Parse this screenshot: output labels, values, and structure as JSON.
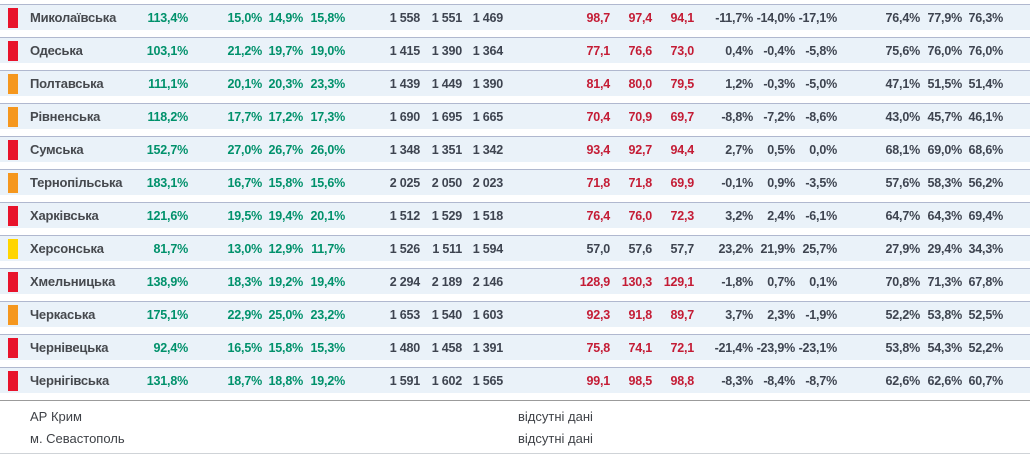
{
  "colors": {
    "indicator": {
      "red": "#e8132b",
      "orange": "#f5971e",
      "yellow": "#ffd500"
    },
    "row_bg": "#eaf2f9",
    "row_border": "#b0b8cf",
    "text_green": "#00916b",
    "text_red": "#c41c35",
    "text_dark": "#3e4450"
  },
  "chart_data": {
    "type": "table",
    "rows": [
      {
        "region": "Миколаївська",
        "level": "red",
        "ratio": "113,4%",
        "pcts": [
          "15,0%",
          "14,9%",
          "15,8%"
        ],
        "counts": [
          "1 558",
          "1 551",
          "1 469"
        ],
        "vals": [
          "98,7",
          "97,4",
          "94,1"
        ],
        "vals_color": "red",
        "deltas": [
          "-11,7%",
          "-14,0%",
          "-17,1%"
        ],
        "shares": [
          "76,4%",
          "77,9%",
          "76,3%"
        ]
      },
      {
        "region": "Одеська",
        "level": "red",
        "ratio": "103,1%",
        "pcts": [
          "21,2%",
          "19,7%",
          "19,0%"
        ],
        "counts": [
          "1 415",
          "1 390",
          "1 364"
        ],
        "vals": [
          "77,1",
          "76,6",
          "73,0"
        ],
        "vals_color": "red",
        "deltas": [
          "0,4%",
          "-0,4%",
          "-5,8%"
        ],
        "shares": [
          "75,6%",
          "76,0%",
          "76,0%"
        ]
      },
      {
        "region": "Полтавська",
        "level": "orange",
        "ratio": "111,1%",
        "pcts": [
          "20,1%",
          "20,3%",
          "23,3%"
        ],
        "counts": [
          "1 439",
          "1 449",
          "1 390"
        ],
        "vals": [
          "81,4",
          "80,0",
          "79,5"
        ],
        "vals_color": "red",
        "deltas": [
          "1,2%",
          "-0,3%",
          "-5,0%"
        ],
        "shares": [
          "47,1%",
          "51,5%",
          "51,4%"
        ]
      },
      {
        "region": "Рівненська",
        "level": "orange",
        "ratio": "118,2%",
        "pcts": [
          "17,7%",
          "17,2%",
          "17,3%"
        ],
        "counts": [
          "1 690",
          "1 695",
          "1 665"
        ],
        "vals": [
          "70,4",
          "70,9",
          "69,7"
        ],
        "vals_color": "red",
        "deltas": [
          "-8,8%",
          "-7,2%",
          "-8,6%"
        ],
        "shares": [
          "43,0%",
          "45,7%",
          "46,1%"
        ]
      },
      {
        "region": "Сумська",
        "level": "red",
        "ratio": "152,7%",
        "pcts": [
          "27,0%",
          "26,7%",
          "26,0%"
        ],
        "counts": [
          "1 348",
          "1 351",
          "1 342"
        ],
        "vals": [
          "93,4",
          "92,7",
          "94,4"
        ],
        "vals_color": "red",
        "deltas": [
          "2,7%",
          "0,5%",
          "0,0%"
        ],
        "shares": [
          "68,1%",
          "69,0%",
          "68,6%"
        ]
      },
      {
        "region": "Тернопільська",
        "level": "orange",
        "ratio": "183,1%",
        "pcts": [
          "16,7%",
          "15,8%",
          "15,6%"
        ],
        "counts": [
          "2 025",
          "2 050",
          "2 023"
        ],
        "vals": [
          "71,8",
          "71,8",
          "69,9"
        ],
        "vals_color": "red",
        "deltas": [
          "-0,1%",
          "0,9%",
          "-3,5%"
        ],
        "shares": [
          "57,6%",
          "58,3%",
          "56,2%"
        ]
      },
      {
        "region": "Харківська",
        "level": "red",
        "ratio": "121,6%",
        "pcts": [
          "19,5%",
          "19,4%",
          "20,1%"
        ],
        "counts": [
          "1 512",
          "1 529",
          "1 518"
        ],
        "vals": [
          "76,4",
          "76,0",
          "72,3"
        ],
        "vals_color": "red",
        "deltas": [
          "3,2%",
          "2,4%",
          "-6,1%"
        ],
        "shares": [
          "64,7%",
          "64,3%",
          "69,4%"
        ]
      },
      {
        "region": "Херсонська",
        "level": "yellow",
        "ratio": "81,7%",
        "pcts": [
          "13,0%",
          "12,9%",
          "11,7%"
        ],
        "counts": [
          "1 526",
          "1 511",
          "1 594"
        ],
        "vals": [
          "57,0",
          "57,6",
          "57,7"
        ],
        "vals_color": "dark",
        "deltas": [
          "23,2%",
          "21,9%",
          "25,7%"
        ],
        "shares": [
          "27,9%",
          "29,4%",
          "34,3%"
        ]
      },
      {
        "region": "Хмельницька",
        "level": "red",
        "ratio": "138,9%",
        "pcts": [
          "18,3%",
          "19,2%",
          "19,4%"
        ],
        "counts": [
          "2 294",
          "2 189",
          "2 146"
        ],
        "vals": [
          "128,9",
          "130,3",
          "129,1"
        ],
        "vals_color": "red",
        "deltas": [
          "-1,8%",
          "0,7%",
          "0,1%"
        ],
        "shares": [
          "70,8%",
          "71,3%",
          "67,8%"
        ]
      },
      {
        "region": "Черкаська",
        "level": "orange",
        "ratio": "175,1%",
        "pcts": [
          "22,9%",
          "25,0%",
          "23,2%"
        ],
        "counts": [
          "1 653",
          "1 540",
          "1 603"
        ],
        "vals": [
          "92,3",
          "91,8",
          "89,7"
        ],
        "vals_color": "red",
        "deltas": [
          "3,7%",
          "2,3%",
          "-1,9%"
        ],
        "shares": [
          "52,2%",
          "53,8%",
          "52,5%"
        ]
      },
      {
        "region": "Чернівецька",
        "level": "red",
        "ratio": "92,4%",
        "pcts": [
          "16,5%",
          "15,8%",
          "15,3%"
        ],
        "counts": [
          "1 480",
          "1 458",
          "1 391"
        ],
        "vals": [
          "75,8",
          "74,1",
          "72,1"
        ],
        "vals_color": "red",
        "deltas": [
          "-21,4%",
          "-23,9%",
          "-23,1%"
        ],
        "shares": [
          "53,8%",
          "54,3%",
          "52,2%"
        ]
      },
      {
        "region": "Чернігівська",
        "level": "red",
        "ratio": "131,8%",
        "pcts": [
          "18,7%",
          "18,8%",
          "19,2%"
        ],
        "counts": [
          "1 591",
          "1 602",
          "1 565"
        ],
        "vals": [
          "99,1",
          "98,5",
          "98,8"
        ],
        "vals_color": "red",
        "deltas": [
          "-8,3%",
          "-8,4%",
          "-8,7%"
        ],
        "shares": [
          "62,6%",
          "62,6%",
          "60,7%"
        ]
      }
    ],
    "no_data_rows": [
      {
        "region": "АР Крим",
        "note": "відсутні дані"
      },
      {
        "region": "м. Севастополь",
        "note": "відсутні дані"
      }
    ]
  }
}
